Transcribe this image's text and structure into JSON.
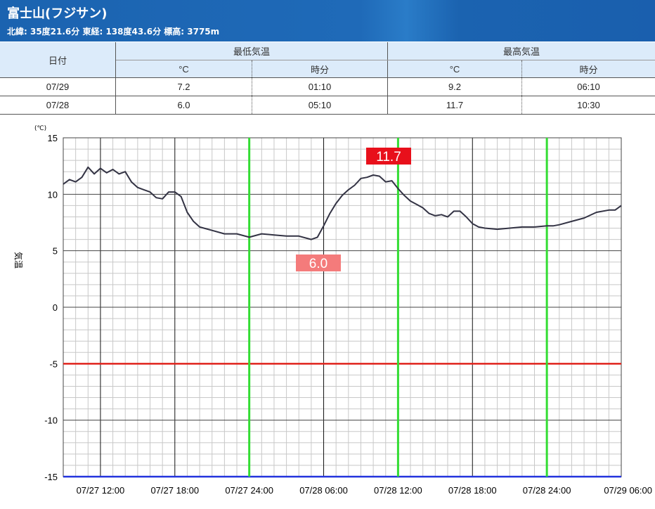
{
  "station": {
    "name": "富士山(フジサン)",
    "location": "北緯: 35度21.6分 東経: 138度43.6分 標高: 3775m"
  },
  "table": {
    "date_header": "日付",
    "min_header": "最低気温",
    "max_header": "最高気温",
    "unit_header": "°C",
    "time_header": "時分",
    "rows": [
      {
        "date": "07/29",
        "min": "7.2",
        "min_time": "01:10",
        "max": "9.2",
        "max_time": "06:10"
      },
      {
        "date": "07/28",
        "min": "6.0",
        "min_time": "05:10",
        "max": "11.7",
        "max_time": "10:30"
      }
    ]
  },
  "chart_data": {
    "type": "line",
    "ylabel": "気温",
    "yunit": "(℃)",
    "ylim": [
      -15,
      15
    ],
    "yticks": [
      15,
      10,
      5,
      0,
      -5,
      -10,
      -15
    ],
    "xlim": [
      "07/27 09:00",
      "07/29 06:00"
    ],
    "xtick_labels": [
      "07/27 12:00",
      "07/27 18:00",
      "07/27 24:00",
      "07/28 06:00",
      "07/28 12:00",
      "07/28 18:00",
      "07/28 24:00",
      "07/29 06:00"
    ],
    "grid": true,
    "reference_lines": {
      "red_y": -5,
      "blue_y": -15,
      "colors": {
        "red": "#e0231c",
        "blue": "#2233dd",
        "green": "#33dd33",
        "line": "#333344"
      }
    },
    "annotations": [
      {
        "label": "11.7",
        "time": "07/28 10:30",
        "value": 11.7,
        "color": "#e8101b"
      },
      {
        "label": "6.0",
        "time": "07/28 05:10",
        "value": 6.0,
        "color": "#f47b7b"
      }
    ],
    "series": [
      {
        "x": [
          "07/27 09:00",
          "07/27 09:30",
          "07/27 10:00",
          "07/27 10:30",
          "07/27 11:00",
          "07/27 11:30",
          "07/27 12:00",
          "07/27 12:30",
          "07/27 13:00",
          "07/27 13:30",
          "07/27 14:00",
          "07/27 14:30",
          "07/27 15:00",
          "07/27 15:30",
          "07/27 16:00",
          "07/27 16:30",
          "07/27 17:00",
          "07/27 17:30",
          "07/27 18:00",
          "07/27 18:30",
          "07/27 19:00",
          "07/27 19:30",
          "07/27 20:00",
          "07/27 21:00",
          "07/27 22:00",
          "07/27 23:00",
          "07/28 00:00",
          "07/28 01:00",
          "07/28 02:00",
          "07/28 03:00",
          "07/28 04:00",
          "07/28 05:00",
          "07/28 05:30",
          "07/28 06:00",
          "07/28 06:30",
          "07/28 07:00",
          "07/28 07:30",
          "07/28 08:00",
          "07/28 08:30",
          "07/28 09:00",
          "07/28 09:30",
          "07/28 10:00",
          "07/28 10:30",
          "07/28 11:00",
          "07/28 11:30",
          "07/28 12:00",
          "07/28 12:30",
          "07/28 13:00",
          "07/28 13:30",
          "07/28 14:00",
          "07/28 14:30",
          "07/28 15:00",
          "07/28 15:30",
          "07/28 16:00",
          "07/28 16:30",
          "07/28 17:00",
          "07/28 17:30",
          "07/28 18:00",
          "07/28 18:30",
          "07/28 19:00",
          "07/28 20:00",
          "07/28 21:00",
          "07/28 22:00",
          "07/28 23:00",
          "07/29 00:00",
          "07/29 00:30",
          "07/29 01:00",
          "07/29 02:00",
          "07/29 03:00",
          "07/29 04:00",
          "07/29 05:00",
          "07/29 05:30",
          "07/29 06:00"
        ],
        "y": [
          10.9,
          11.3,
          11.1,
          11.5,
          12.4,
          11.8,
          12.3,
          11.9,
          12.2,
          11.8,
          12.0,
          11.1,
          10.6,
          10.4,
          10.2,
          9.7,
          9.6,
          10.2,
          10.2,
          9.8,
          8.4,
          7.6,
          7.1,
          6.8,
          6.5,
          6.5,
          6.2,
          6.5,
          6.4,
          6.3,
          6.3,
          6.0,
          6.2,
          7.2,
          8.3,
          9.2,
          9.9,
          10.4,
          10.8,
          11.4,
          11.5,
          11.7,
          11.6,
          11.1,
          11.2,
          10.5,
          9.9,
          9.4,
          9.1,
          8.8,
          8.3,
          8.1,
          8.2,
          8.0,
          8.5,
          8.5,
          8.0,
          7.4,
          7.1,
          7.0,
          6.9,
          7.0,
          7.1,
          7.1,
          7.2,
          7.2,
          7.3,
          7.6,
          7.9,
          8.4,
          8.6,
          8.6,
          9.0
        ]
      }
    ]
  }
}
